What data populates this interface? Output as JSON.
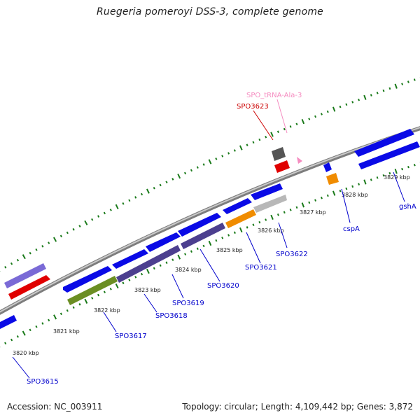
{
  "title": "Ruegeria pomeroyi DSS-3, complete genome",
  "footer": {
    "accession": "Accession: NC_003911",
    "summary": "Topology: circular; Length: 4,109,442 bp; Genes: 3,872"
  },
  "colors": {
    "backbone": "#8c8c8c",
    "ticks": "#1a7a1a",
    "gene_blue": "#0a0ae6",
    "gene_purple": "#4c3f8f",
    "gene_lightpurple": "#7a6ad6",
    "gene_olive": "#6b8e23",
    "gene_orange": "#f08c00",
    "gene_grey": "#b8b8b8",
    "gene_darkgrey": "#555555",
    "gene_red": "#e00000",
    "trna_pink": "#f58cc0",
    "label_blue": "#0000cc",
    "label_red": "#cc0000",
    "label_pink": "#f58cc0"
  },
  "kbp_labels": [
    "3820 kbp",
    "3821 kbp",
    "3822 kbp",
    "3823 kbp",
    "3824 kbp",
    "3825 kbp",
    "3826 kbp",
    "3827 kbp",
    "3828 kbp",
    "3829 kbp"
  ],
  "gene_labels": [
    "SPO3615",
    "SPO3617",
    "SPO3618",
    "SPO3619",
    "SPO3620",
    "SPO3621",
    "SPO3622",
    "cspA",
    "gshA",
    "SPO3623",
    "SPO_tRNA-Ala-3"
  ]
}
